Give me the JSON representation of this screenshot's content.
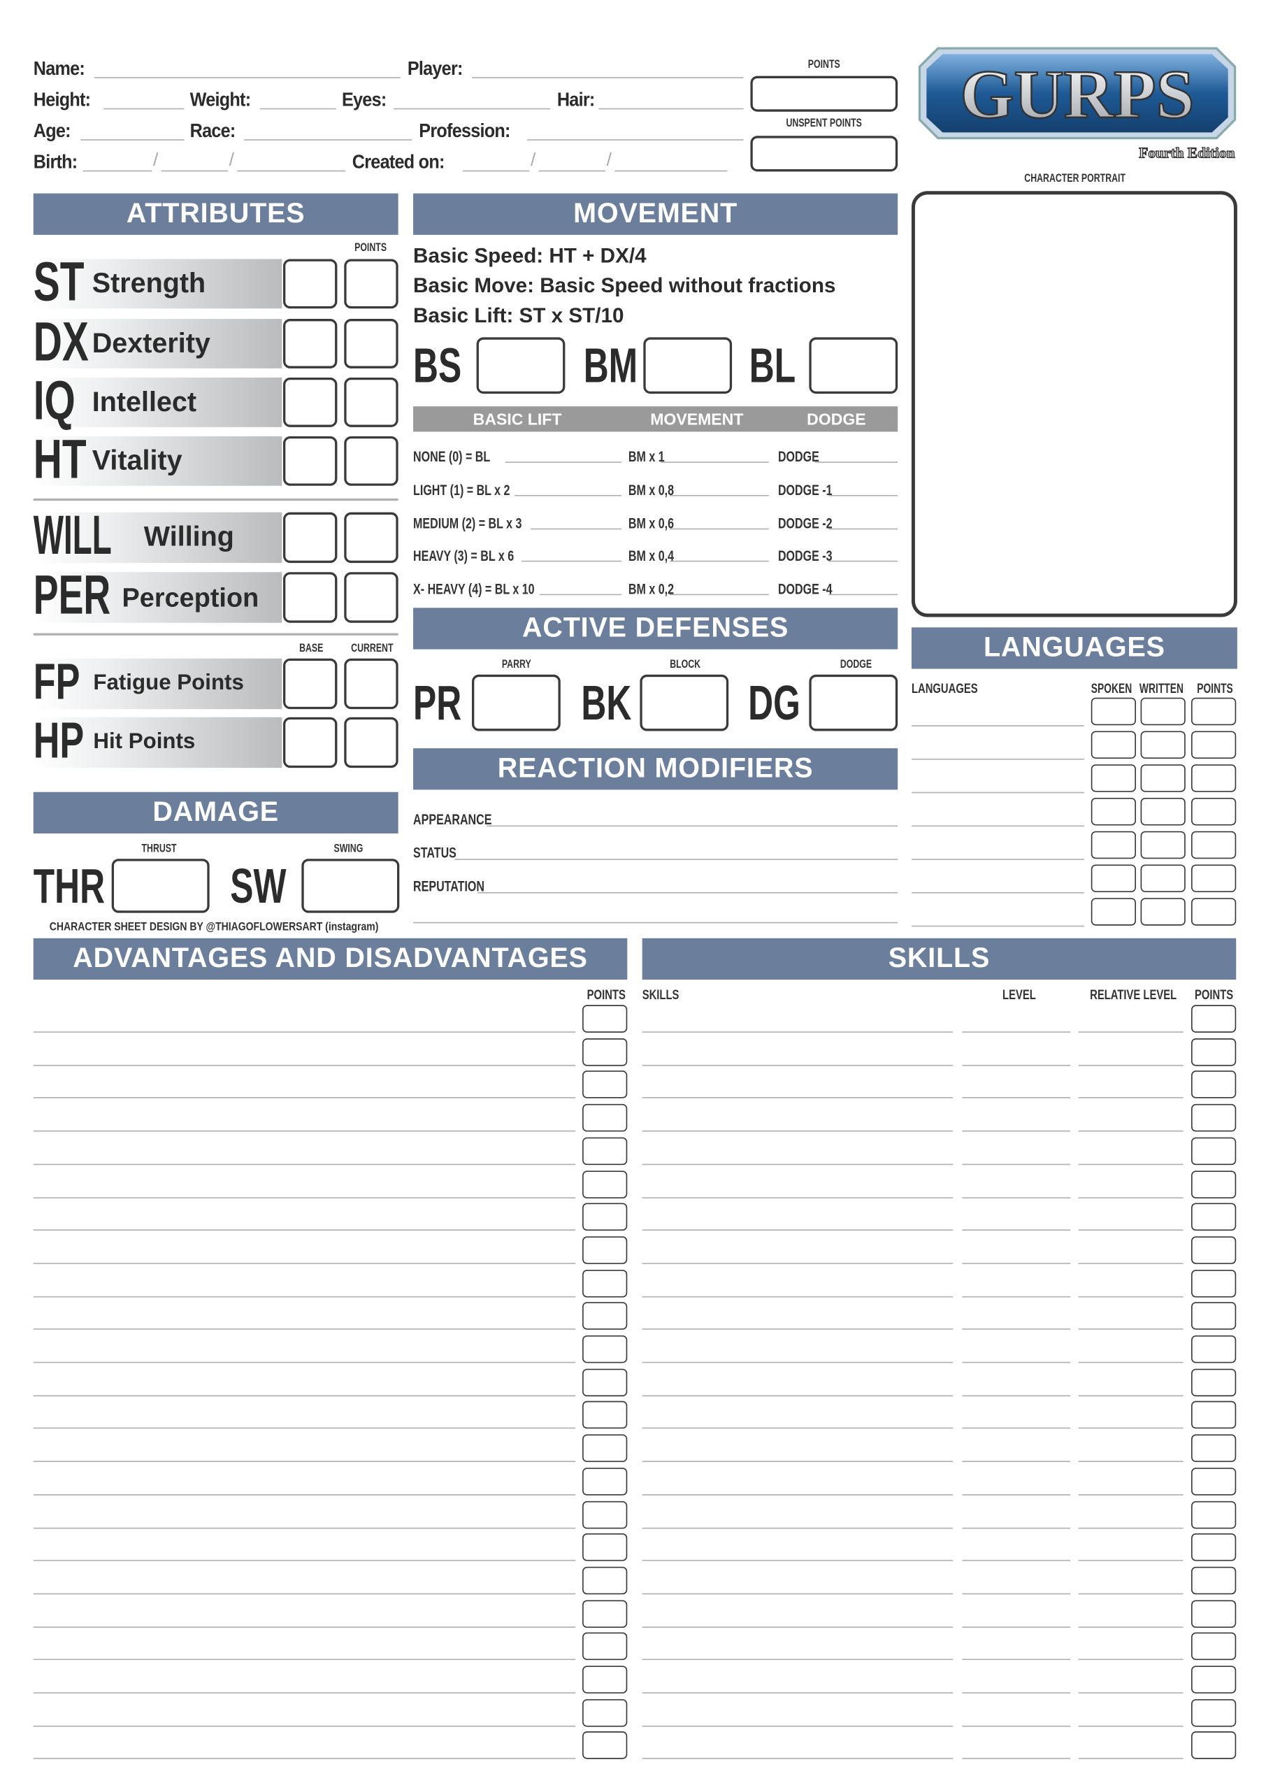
{
  "header": {
    "name": "Name:",
    "player": "Player:",
    "height": "Height:",
    "weight": "Weight:",
    "eyes": "Eyes:",
    "hair": "Hair:",
    "age": "Age:",
    "race": "Race:",
    "profession": "Profession:",
    "birth": "Birth:",
    "created_on": "Created on:",
    "slash": "/",
    "points": "POINTS",
    "unspent_points": "UNSPENT POINTS"
  },
  "logo": {
    "text": "GURPS",
    "edition": "Fourth Edition",
    "color": "#1e5a96"
  },
  "portrait": {
    "label": "CHARACTER PORTRAIT"
  },
  "attributes": {
    "title": "ATTRIBUTES",
    "points_label": "POINTS",
    "base_label": "BASE",
    "current_label": "CURRENT",
    "primary": [
      {
        "abbr": "ST",
        "name": "Strength"
      },
      {
        "abbr": "DX",
        "name": "Dexterity"
      },
      {
        "abbr": "IQ",
        "name": "Intellect"
      },
      {
        "abbr": "HT",
        "name": "Vitality"
      }
    ],
    "secondary": [
      {
        "abbr": "WILL",
        "name": "Willing"
      },
      {
        "abbr": "PER",
        "name": "Perception"
      }
    ],
    "pools": [
      {
        "abbr": "FP",
        "name": "Fatigue Points"
      },
      {
        "abbr": "HP",
        "name": "Hit Points"
      }
    ]
  },
  "damage": {
    "title": "DAMAGE",
    "thrust_label": "THRUST",
    "swing_label": "SWING",
    "thr": "THR",
    "sw": "SW"
  },
  "credit": "CHARACTER SHEET DESIGN BY @THIAGOFLOWERSART (instagram)",
  "movement": {
    "title": "MOVEMENT",
    "lines": [
      "Basic Speed: HT + DX/4",
      "Basic Move: Basic Speed without fractions",
      "Basic Lift: ST x ST/10"
    ],
    "bs": "BS",
    "bm": "BM",
    "bl": "BL",
    "table_headers": [
      "BASIC LIFT",
      "MOVEMENT",
      "DODGE"
    ],
    "rows": [
      [
        "NONE (0) = BL",
        "BM x 1",
        "DODGE"
      ],
      [
        "LIGHT (1) = BL x 2",
        "BM x 0,8",
        "DODGE -1"
      ],
      [
        "MEDIUM (2) = BL x 3",
        "BM x 0,6",
        "DODGE -2"
      ],
      [
        "HEAVY (3) = BL x 6",
        "BM x 0,4",
        "DODGE -3"
      ],
      [
        "X- HEAVY (4) = BL x 10",
        "BM x 0,2",
        "DODGE -4"
      ]
    ]
  },
  "active_defenses": {
    "title": "ACTIVE DEFENSES",
    "parry_label": "PARRY",
    "block_label": "BLOCK",
    "dodge_label": "DODGE",
    "pr": "PR",
    "bk": "BK",
    "dg": "DG"
  },
  "reaction": {
    "title": "REACTION MODIFIERS",
    "rows": [
      "APPEARANCE",
      "STATUS",
      "REPUTATION"
    ]
  },
  "languages": {
    "title": "LANGUAGES",
    "col_language": "LANGUAGES",
    "col_spoken": "SPOKEN",
    "col_written": "WRITTEN",
    "col_points": "POINTS"
  },
  "advantages": {
    "title": "ADVANTAGES AND DISADVANTAGES",
    "col_points": "POINTS"
  },
  "skills": {
    "title": "SKILLS",
    "col_skills": "SKILLS",
    "col_level": "LEVEL",
    "col_relative": "RELATIVE LEVEL",
    "col_points": "POINTS"
  },
  "colors": {
    "section_header": "#6b7f9c",
    "table_header": "#9a9a9a"
  }
}
